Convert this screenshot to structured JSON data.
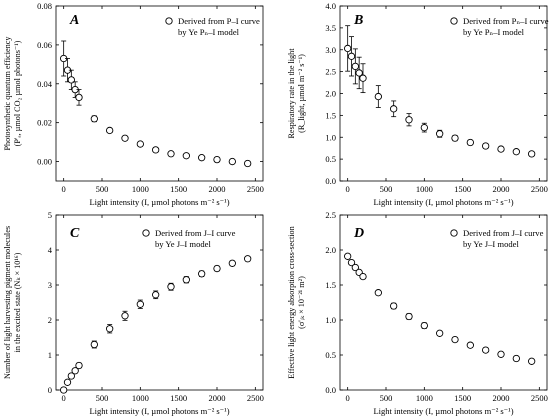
{
  "figure": {
    "background": "#ffffff",
    "ink": "#000000"
  },
  "chart_data": [
    {
      "type": "scatter",
      "panel": "A",
      "xlabel": "Light intensity (I, µmol photons m⁻² s⁻¹)",
      "ylabel_line1": "Photosynthetic quantum efficiency",
      "ylabel_line2": "(P'ₐ, µmol CO₂ µmol photons⁻¹)",
      "xlim": [
        -100,
        2600
      ],
      "ylim": [
        -0.01,
        0.08
      ],
      "xticks": [
        0,
        500,
        1000,
        1500,
        2000,
        2500
      ],
      "yticks": [
        0.0,
        0.02,
        0.04,
        0.06,
        0.08
      ],
      "ytick_labels": [
        "0.00",
        "0.02",
        "0.04",
        "0.06",
        "0.08"
      ],
      "legend_line1": "Derived from P–I curve",
      "legend_line2": "by Ye Pₙ–I model",
      "legend_position": "top-right",
      "series": [
        {
          "x": [
            0,
            50,
            100,
            150,
            200,
            400,
            600,
            800,
            1000,
            1200,
            1400,
            1600,
            1800,
            2000,
            2200,
            2400
          ],
          "y": [
            0.053,
            0.047,
            0.042,
            0.037,
            0.033,
            0.022,
            0.016,
            0.012,
            0.009,
            0.006,
            0.004,
            0.003,
            0.002,
            0.001,
            0.0,
            -0.001
          ],
          "err": [
            0.009,
            0.006,
            0.005,
            0.004,
            0.004,
            0.0015,
            0.001,
            0.001,
            0.0008,
            0.0007,
            0.0005,
            0.0005,
            0.0005,
            0.0005,
            0.0005,
            0.0005
          ]
        }
      ]
    },
    {
      "type": "scatter",
      "panel": "B",
      "xlabel": "Light intensity (I, µmol photons m⁻² s⁻¹)",
      "ylabel_line1": "Respiratory rate in the light",
      "ylabel_line2": "(R_light, µmol m⁻² s⁻¹)",
      "xlim": [
        -100,
        2600
      ],
      "ylim": [
        0,
        4
      ],
      "xticks": [
        0,
        500,
        1000,
        1500,
        2000,
        2500
      ],
      "yticks": [
        0.0,
        0.5,
        1.0,
        1.5,
        2.0,
        2.5,
        3.0,
        3.5,
        4.0
      ],
      "ytick_labels": [
        "0.0",
        "0.5",
        "1.0",
        "1.5",
        "2.0",
        "2.5",
        "3.0",
        "3.5",
        "4.0"
      ],
      "legend_line1": "Derived from Pₙ–I curve",
      "legend_line2": "by Ye Pₙ–I model",
      "legend_position": "top-right",
      "series": [
        {
          "x": [
            0,
            50,
            100,
            150,
            200,
            400,
            600,
            800,
            1000,
            1200,
            1400,
            1600,
            1800,
            2000,
            2200,
            2400
          ],
          "y": [
            3.03,
            2.85,
            2.62,
            2.47,
            2.35,
            1.93,
            1.65,
            1.4,
            1.22,
            1.08,
            0.98,
            0.88,
            0.8,
            0.73,
            0.67,
            0.62
          ],
          "err": [
            0.52,
            0.45,
            0.4,
            0.36,
            0.33,
            0.25,
            0.18,
            0.14,
            0.1,
            0.08,
            0.06,
            0.05,
            0.05,
            0.04,
            0.04,
            0.04
          ]
        }
      ]
    },
    {
      "type": "scatter",
      "panel": "C",
      "xlabel": "Light intensity (I, µmol photons m⁻² s⁻¹)",
      "ylabel_line1": "Number of light harvesting pigment molecules",
      "ylabel_line2": "in the excited state (Nₖ × 10¹⁶)",
      "xlim": [
        -100,
        2600
      ],
      "ylim": [
        0,
        5
      ],
      "xticks": [
        0,
        500,
        1000,
        1500,
        2000,
        2500
      ],
      "yticks": [
        0,
        1,
        2,
        3,
        4,
        5
      ],
      "ytick_labels": [
        "0",
        "1",
        "2",
        "3",
        "4",
        "5"
      ],
      "legend_line1": "Derived from J–I curve",
      "legend_line2": "by Ye J–I model",
      "legend_position": "top-left",
      "series": [
        {
          "x": [
            0,
            50,
            100,
            150,
            200,
            400,
            600,
            800,
            1000,
            1200,
            1400,
            1600,
            1800,
            2000,
            2200,
            2400
          ],
          "y": [
            0.0,
            0.22,
            0.4,
            0.55,
            0.7,
            1.3,
            1.75,
            2.12,
            2.45,
            2.72,
            2.95,
            3.15,
            3.32,
            3.47,
            3.62,
            3.75
          ],
          "err": [
            0.0,
            0.04,
            0.05,
            0.06,
            0.07,
            0.1,
            0.12,
            0.13,
            0.12,
            0.11,
            0.1,
            0.09,
            0.08,
            0.07,
            0.07,
            0.06
          ]
        }
      ]
    },
    {
      "type": "scatter",
      "panel": "D",
      "xlabel": "Light intensity (I, µmol photons m⁻² s⁻¹)",
      "ylabel_line1": "Effective light energy absorption cross-section",
      "ylabel_line2": "(σ'ᵢₖ × 10⁻²¹ m²)",
      "xlim": [
        -100,
        2600
      ],
      "ylim": [
        0,
        2.5
      ],
      "xticks": [
        0,
        500,
        1000,
        1500,
        2000,
        2500
      ],
      "yticks": [
        0.0,
        0.5,
        1.0,
        1.5,
        2.0,
        2.5
      ],
      "ytick_labels": [
        "0.0",
        "0.5",
        "1.0",
        "1.5",
        "2.0",
        "2.5"
      ],
      "legend_line1": "Derived from J–I curve",
      "legend_line2": "by Ye J–I model",
      "legend_position": "top-right",
      "series": [
        {
          "x": [
            0,
            50,
            100,
            150,
            200,
            400,
            600,
            800,
            1000,
            1200,
            1400,
            1600,
            1800,
            2000,
            2200,
            2400
          ],
          "y": [
            1.91,
            1.82,
            1.75,
            1.68,
            1.62,
            1.39,
            1.2,
            1.05,
            0.92,
            0.81,
            0.72,
            0.64,
            0.57,
            0.51,
            0.45,
            0.41
          ],
          "err": [
            0.03,
            0.03,
            0.03,
            0.03,
            0.03,
            0.03,
            0.04,
            0.04,
            0.04,
            0.03,
            0.03,
            0.03,
            0.03,
            0.03,
            0.03,
            0.03
          ]
        }
      ]
    }
  ]
}
